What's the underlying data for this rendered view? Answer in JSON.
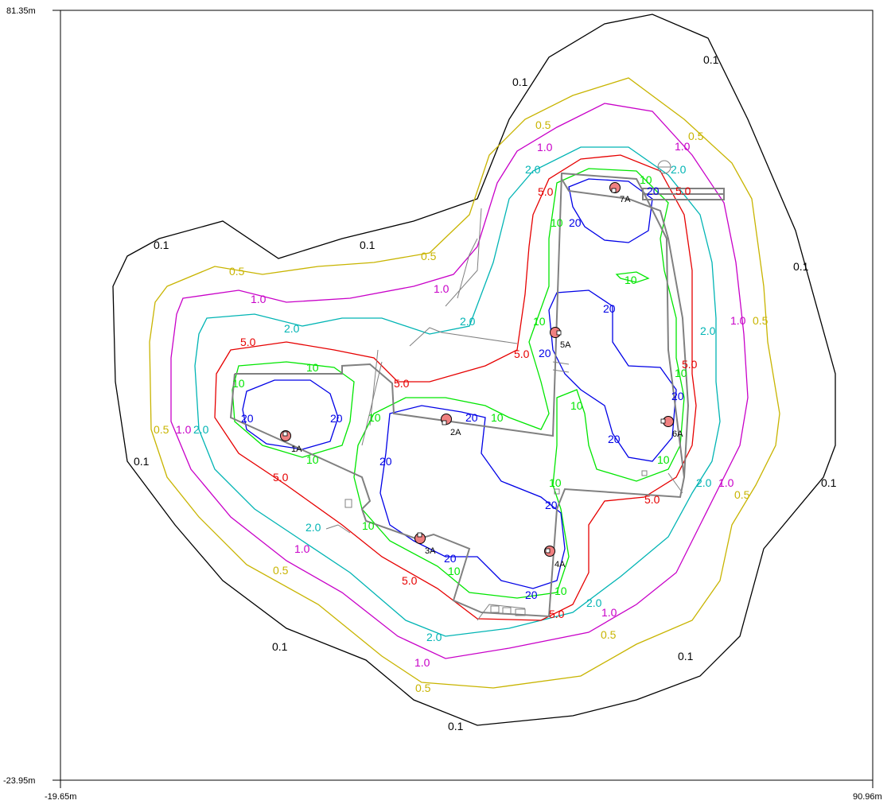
{
  "axes": {
    "y_top": "81.35m",
    "y_bottom": "-23.95m",
    "x_left": "-19.65m",
    "x_right": "90.96m"
  },
  "colors": {
    "c0_1": "#000000",
    "c0_5": "#c8b400",
    "c1_0": "#c800c8",
    "c2_0": "#00b4b4",
    "c5_0": "#e60000",
    "c10": "#00e600",
    "c20": "#0000e6",
    "structure": "#808080",
    "fixture": "#f08080"
  },
  "contour_labels": {
    "v0_1": "0.1",
    "v0_5": "0.5",
    "v1_0": "1.0",
    "v2_0": "2.0",
    "v5_0": "5.0",
    "v10": "10",
    "v20": "20"
  },
  "fixtures": [
    "1A",
    "2A",
    "3A",
    "4A",
    "5A",
    "6A",
    "7A"
  ]
}
